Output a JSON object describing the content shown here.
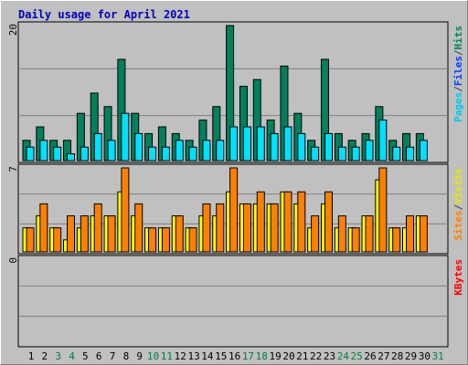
{
  "chart_data": [
    {
      "type": "bar",
      "title": "Daily usage for April 2021",
      "ylim": [
        0,
        20
      ],
      "yticks": [
        20
      ],
      "legend": [
        {
          "text": "Pages",
          "color": "#00c8e8"
        },
        {
          "text": "/",
          "color": "#404040"
        },
        {
          "text": "Files",
          "color": "#0040ff"
        },
        {
          "text": "/",
          "color": "#404040"
        },
        {
          "text": "Hits",
          "color": "#00805c"
        }
      ],
      "series": [
        {
          "color": "#00805c",
          "values": [
            3,
            5,
            3,
            3,
            7,
            10,
            8,
            15,
            7,
            4,
            5,
            4,
            3,
            6,
            8,
            20,
            11,
            12,
            6,
            14,
            7,
            3,
            15,
            4,
            3,
            4,
            8,
            3,
            4,
            4,
            0
          ]
        },
        {
          "color": "#00e0ff",
          "values": [
            2,
            3,
            2,
            1,
            2,
            4,
            3,
            7,
            4,
            2,
            2,
            3,
            2,
            3,
            3,
            5,
            5,
            5,
            4,
            5,
            4,
            2,
            4,
            2,
            2,
            3,
            6,
            2,
            2,
            3,
            0
          ]
        }
      ]
    },
    {
      "type": "bar",
      "ylim": [
        0,
        7
      ],
      "yticks": [
        7
      ],
      "legend": [
        {
          "text": "Sites",
          "color": "#ff8000"
        },
        {
          "text": "/",
          "color": "#404040"
        },
        {
          "text": "Visits",
          "color": "#e8e800"
        }
      ],
      "series": [
        {
          "color": "#ffff00",
          "values": [
            2,
            3,
            2,
            1,
            2,
            3,
            3,
            5,
            3,
            2,
            2,
            3,
            2,
            3,
            3,
            5,
            4,
            4,
            4,
            5,
            4,
            2,
            4,
            2,
            2,
            3,
            6,
            2,
            2,
            3,
            0
          ]
        },
        {
          "color": "#ff8000",
          "values": [
            2,
            4,
            2,
            3,
            3,
            4,
            3,
            7,
            4,
            2,
            2,
            3,
            2,
            4,
            4,
            7,
            4,
            5,
            4,
            5,
            5,
            3,
            5,
            3,
            2,
            3,
            7,
            2,
            3,
            3,
            0
          ]
        }
      ]
    },
    {
      "type": "bar",
      "yticks": [
        0
      ],
      "legend": [
        {
          "text": "KBytes",
          "color": "#ff0000"
        }
      ],
      "series": [],
      "categories": [
        "1",
        "2",
        "3",
        "4",
        "5",
        "6",
        "7",
        "8",
        "9",
        "10",
        "11",
        "12",
        "13",
        "14",
        "15",
        "16",
        "17",
        "18",
        "19",
        "20",
        "21",
        "22",
        "23",
        "24",
        "25",
        "26",
        "27",
        "28",
        "29",
        "30",
        "31"
      ],
      "category_colors": [
        "#000000",
        "#000000",
        "#008040",
        "#008040",
        "#000000",
        "#000000",
        "#000000",
        "#000000",
        "#000000",
        "#008040",
        "#008040",
        "#000000",
        "#000000",
        "#000000",
        "#000000",
        "#000000",
        "#008040",
        "#008040",
        "#000000",
        "#000000",
        "#000000",
        "#000000",
        "#000000",
        "#008040",
        "#008040",
        "#000000",
        "#000000",
        "#000000",
        "#000000",
        "#000000",
        "#008040"
      ]
    }
  ]
}
